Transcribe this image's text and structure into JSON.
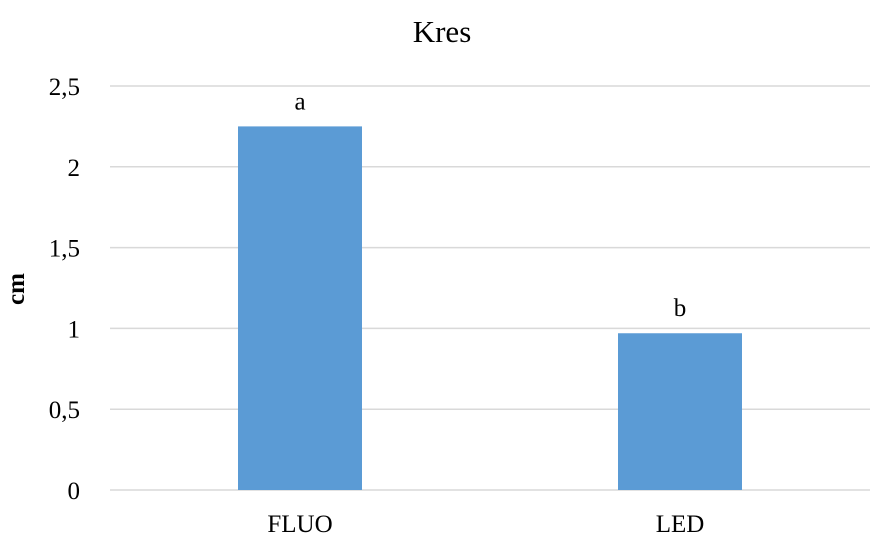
{
  "chart_data": {
    "type": "bar",
    "title": "Kres",
    "xlabel": "",
    "ylabel": "cm",
    "categories": [
      "FLUO",
      "LED"
    ],
    "values": [
      2.25,
      0.97
    ],
    "data_labels": [
      "a",
      "b"
    ],
    "ylim": [
      0,
      2.5
    ],
    "y_ticks": [
      0,
      0.5,
      1,
      1.5,
      2,
      2.5
    ],
    "y_tick_labels": [
      "0",
      "0,5",
      "1",
      "1,5",
      "2",
      "2,5"
    ],
    "grid": true,
    "legend": "none",
    "colors": {
      "bar": "#5B9BD5",
      "grid": "#D9D9D9",
      "axis": "#D9D9D9",
      "text": "#000000"
    }
  }
}
